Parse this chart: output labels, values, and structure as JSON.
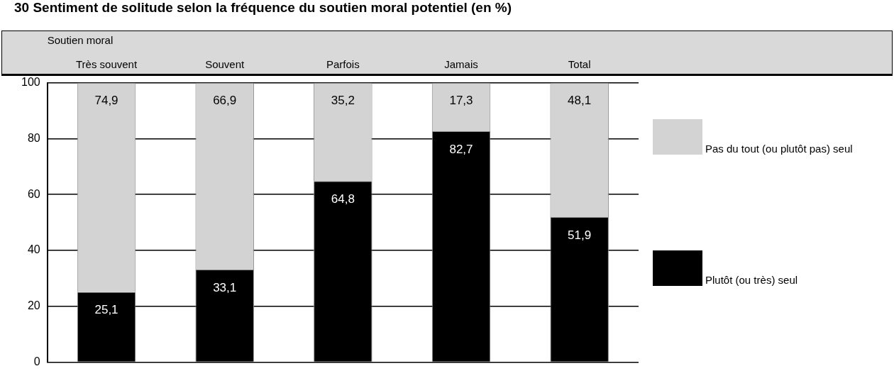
{
  "chart_data": {
    "type": "bar",
    "title": "30 Sentiment de solitude selon la fréquence du soutien moral potentiel (en %)",
    "xlabel": "Soutien moral",
    "categories": [
      "Très souvent",
      "Souvent",
      "Parfois",
      "Jamais",
      "Total"
    ],
    "stacked": true,
    "series": [
      {
        "name": "Plutôt (ou très) seul",
        "color": "#000000",
        "values": [
          25.1,
          33.1,
          64.8,
          82.7,
          51.9
        ],
        "value_labels": [
          "25,1",
          "33,1",
          "64,8",
          "82,7",
          "51,9"
        ]
      },
      {
        "name": "Pas du tout (ou plutôt pas) seul",
        "color": "#d3d3d3",
        "values": [
          74.9,
          66.9,
          35.2,
          17.3,
          48.1
        ],
        "value_labels": [
          "74,9",
          "66,9",
          "35,2",
          "17,3",
          "48,1"
        ]
      }
    ],
    "ylim": [
      0,
      100
    ],
    "yticks": [
      0,
      20,
      40,
      60,
      80,
      100
    ],
    "grid": "y",
    "legend": "right",
    "data_labels": true
  }
}
